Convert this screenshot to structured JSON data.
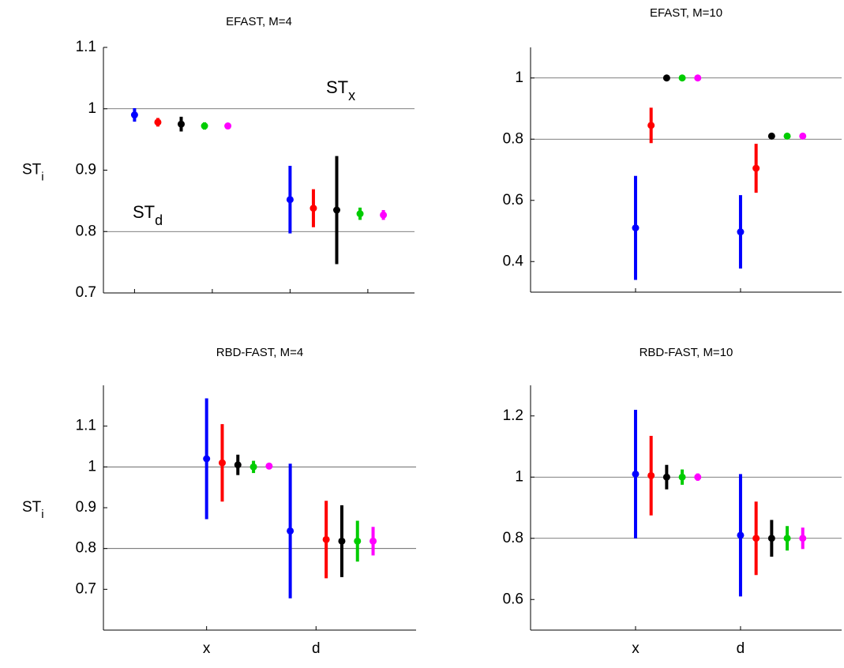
{
  "chart_data": [
    {
      "type": "errorbar",
      "title": "EFAST, M=4",
      "ylabel": "ST",
      "ylabel_sub": "i",
      "xlim": [
        0,
        4
      ],
      "xticks": [
        0.4,
        1.4,
        2.4,
        3.4
      ],
      "show_xtick_labels": false,
      "ylim": [
        0.7,
        1.1
      ],
      "yticks": [
        0.7,
        0.8,
        0.9,
        1,
        1.1
      ],
      "hlines": [
        1,
        0.8
      ],
      "annotations": [
        {
          "text": "ST",
          "sub": "x"
        },
        {
          "text": "ST",
          "sub": "d"
        }
      ],
      "series": [
        {
          "color": "#0000ff",
          "x": [
            0.4,
            2.4
          ],
          "values": [
            0.99,
            0.852
          ],
          "errors": [
            0.011,
            0.055
          ]
        },
        {
          "color": "#ff0000",
          "x": [
            0.7,
            2.7
          ],
          "values": [
            0.978,
            0.838
          ],
          "errors": [
            0.007,
            0.031
          ]
        },
        {
          "color": "#000000",
          "x": [
            1.0,
            3.0
          ],
          "values": [
            0.975,
            0.835
          ],
          "errors": [
            0.012,
            0.088
          ]
        },
        {
          "color": "#00cc00",
          "x": [
            1.3,
            3.3
          ],
          "values": [
            0.972,
            0.829
          ],
          "errors": [
            0.006,
            0.01
          ]
        },
        {
          "color": "#ff00ff",
          "x": [
            1.6,
            3.6
          ],
          "values": [
            0.972,
            0.827
          ],
          "errors": [
            0.003,
            0.008
          ]
        }
      ]
    },
    {
      "type": "errorbar",
      "title": "EFAST, M=10",
      "xlim": [
        0,
        4
      ],
      "xticks": [
        1.35,
        2.7
      ],
      "show_xtick_labels": false,
      "ylim": [
        0.3,
        1.1
      ],
      "yticks": [
        0.4,
        0.6,
        0.8,
        1
      ],
      "hlines": [
        1,
        0.8
      ],
      "series": [
        {
          "color": "#0000ff",
          "x": [
            1.35,
            2.7
          ],
          "values": [
            0.51,
            0.497
          ],
          "errors": [
            0.17,
            0.12
          ]
        },
        {
          "color": "#ff0000",
          "x": [
            1.55,
            2.9
          ],
          "values": [
            0.845,
            0.705
          ],
          "errors": [
            0.058,
            0.08
          ]
        },
        {
          "color": "#000000",
          "x": [
            1.75,
            3.1
          ],
          "values": [
            1.0,
            0.81
          ],
          "errors": [
            0.005,
            0.01
          ]
        },
        {
          "color": "#00cc00",
          "x": [
            1.95,
            3.3
          ],
          "values": [
            1.0,
            0.81
          ],
          "errors": [
            0.003,
            0.007
          ]
        },
        {
          "color": "#ff00ff",
          "x": [
            2.15,
            3.5
          ],
          "values": [
            1.0,
            0.81
          ],
          "errors": [
            0.003,
            0.004
          ]
        }
      ]
    },
    {
      "type": "errorbar",
      "title": "RBD-FAST, M=4",
      "ylabel": "ST",
      "ylabel_sub": "i",
      "xlim": [
        0,
        4
      ],
      "xticks": [
        {
          "value": 1.32,
          "label": "x"
        },
        {
          "value": 2.72,
          "label": "d"
        }
      ],
      "show_xtick_labels": true,
      "ylim": [
        0.6,
        1.2
      ],
      "yticks": [
        0.7,
        0.8,
        0.9,
        1,
        1.1
      ],
      "hlines": [
        1,
        0.8
      ],
      "series": [
        {
          "color": "#0000ff",
          "x": [
            1.32,
            2.39
          ],
          "values": [
            1.02,
            0.843
          ],
          "errors": [
            0.148,
            0.165
          ]
        },
        {
          "color": "#ff0000",
          "x": [
            1.52,
            2.85
          ],
          "values": [
            1.01,
            0.822
          ],
          "errors": [
            0.095,
            0.095
          ]
        },
        {
          "color": "#000000",
          "x": [
            1.72,
            3.05
          ],
          "values": [
            1.005,
            0.818
          ],
          "errors": [
            0.025,
            0.088
          ]
        },
        {
          "color": "#00cc00",
          "x": [
            1.92,
            3.25
          ],
          "values": [
            1.0,
            0.818
          ],
          "errors": [
            0.015,
            0.05
          ]
        },
        {
          "color": "#ff00ff",
          "x": [
            2.12,
            3.45
          ],
          "values": [
            1.002,
            0.818
          ],
          "errors": [
            0.007,
            0.035
          ]
        }
      ]
    },
    {
      "type": "errorbar",
      "title": "RBD-FAST, M=10",
      "xlim": [
        0,
        4
      ],
      "xticks": [
        {
          "value": 1.35,
          "label": "x"
        },
        {
          "value": 2.7,
          "label": "d"
        }
      ],
      "show_xtick_labels": true,
      "ylim": [
        0.5,
        1.3
      ],
      "yticks": [
        0.6,
        0.8,
        1,
        1.2
      ],
      "hlines": [
        1,
        0.8
      ],
      "series": [
        {
          "color": "#0000ff",
          "x": [
            1.35,
            2.7
          ],
          "values": [
            1.01,
            0.81
          ],
          "errors": [
            0.21,
            0.2
          ]
        },
        {
          "color": "#ff0000",
          "x": [
            1.55,
            2.9
          ],
          "values": [
            1.005,
            0.8
          ],
          "errors": [
            0.13,
            0.12
          ]
        },
        {
          "color": "#000000",
          "x": [
            1.75,
            3.1
          ],
          "values": [
            1.0,
            0.8
          ],
          "errors": [
            0.04,
            0.06
          ]
        },
        {
          "color": "#00cc00",
          "x": [
            1.95,
            3.3
          ],
          "values": [
            1.0,
            0.8
          ],
          "errors": [
            0.025,
            0.04
          ]
        },
        {
          "color": "#ff00ff",
          "x": [
            2.15,
            3.5
          ],
          "values": [
            1.0,
            0.8
          ],
          "errors": [
            0.012,
            0.035
          ]
        }
      ]
    }
  ]
}
